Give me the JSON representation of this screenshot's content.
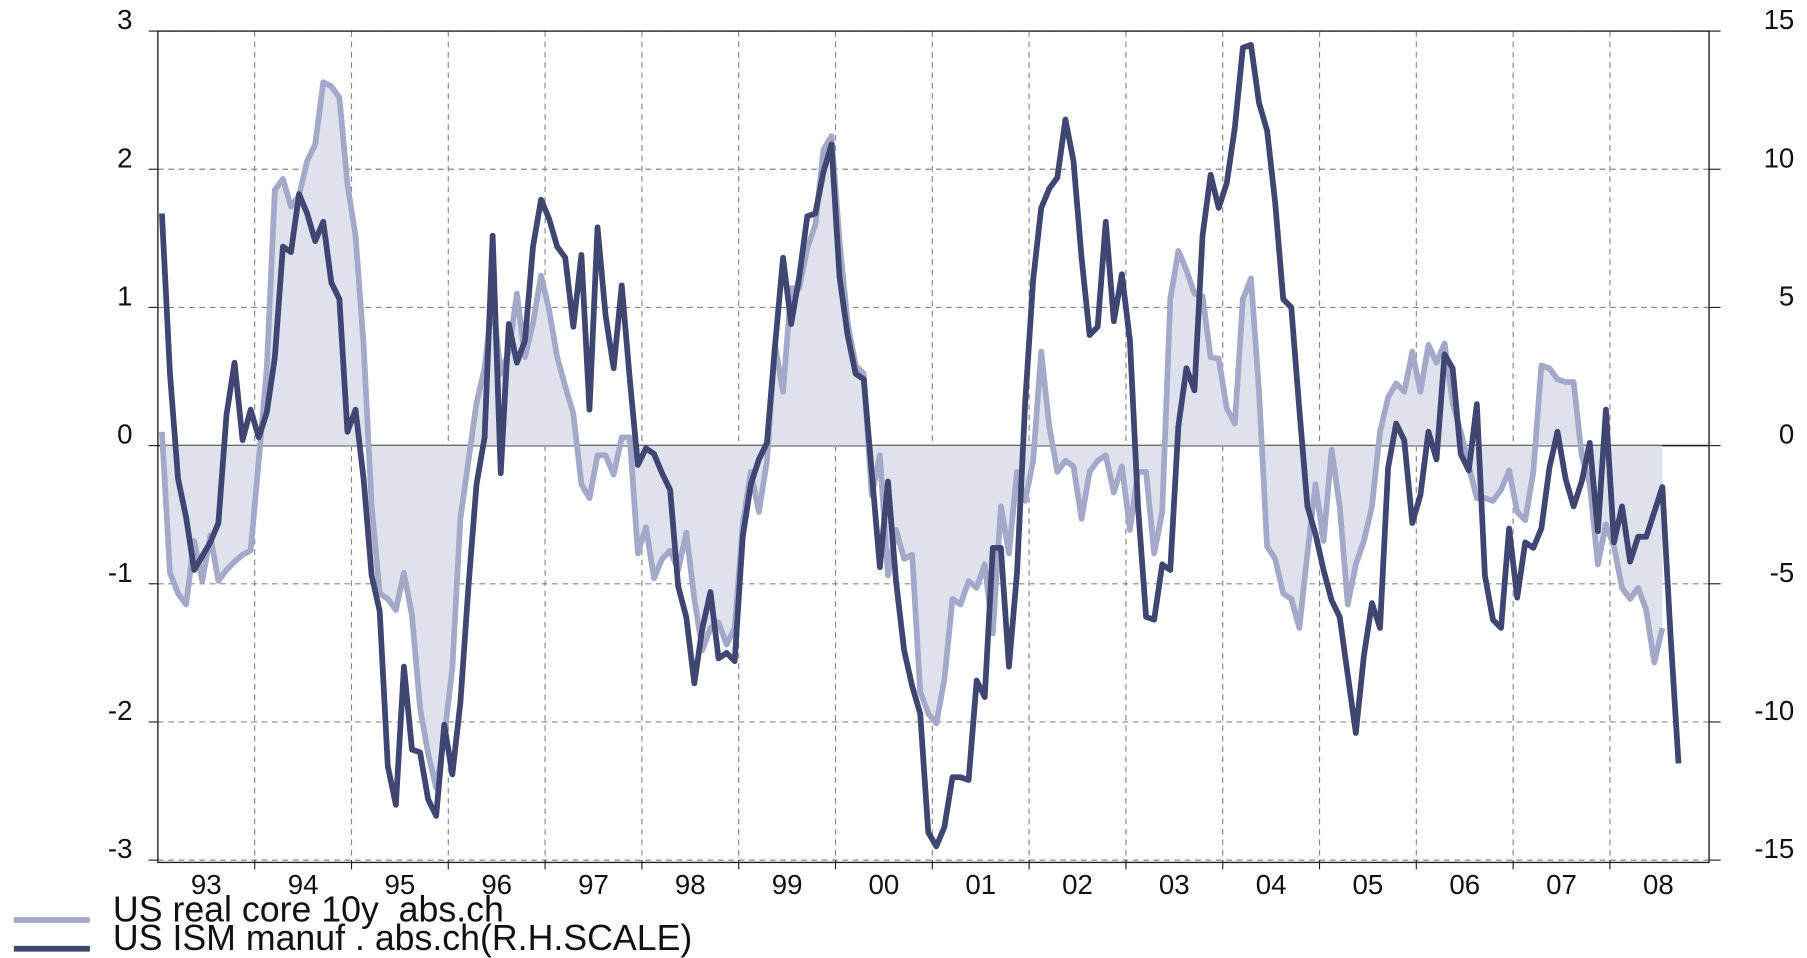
{
  "chart_data": {
    "type": "line",
    "categories": [
      "93",
      "94",
      "95",
      "96",
      "97",
      "98",
      "99",
      "00",
      "01",
      "02",
      "03",
      "04",
      "05",
      "06",
      "07",
      "08"
    ],
    "ylim": [
      -3,
      3
    ],
    "yticks": [
      -3,
      -2,
      -1,
      0,
      1,
      2,
      3
    ],
    "y2lim": [
      -15,
      15
    ],
    "y2ticks": [
      -15,
      -10,
      -5,
      0,
      5,
      10,
      15
    ],
    "grid": true,
    "legend": "bottom-left",
    "series": [
      {
        "name": "US real core 10y  abs.ch",
        "color": "#a5a9c9",
        "fill": "#dfe1ec",
        "values": [
          [
            0.1,
            -0.92,
            -1.07,
            -1.15,
            -0.69,
            -0.98,
            -0.65,
            -0.98,
            -0.9,
            -0.84,
            -0.79,
            -0.76
          ],
          [
            -0.11,
            0.56,
            1.85,
            1.93,
            1.73,
            1.81,
            2.06,
            2.18,
            2.63,
            2.6,
            2.52,
            1.89
          ],
          [
            1.52,
            0.73,
            -0.44,
            -1.07,
            -1.11,
            -1.19,
            -0.92,
            -1.23,
            -1.9,
            -2.23,
            -2.48,
            -2.11
          ],
          [
            -1.61,
            -0.53,
            -0.11,
            0.31,
            0.56,
            1.06,
            0.52,
            0.68,
            1.1,
            0.64,
            0.89,
            1.23
          ],
          [
            0.98,
            0.64,
            0.43,
            0.23,
            -0.28,
            -0.38,
            -0.07,
            -0.07,
            -0.21,
            0.06,
            0.06,
            -0.78
          ],
          [
            -0.59,
            -0.96,
            -0.82,
            -0.76,
            -0.9,
            -0.63,
            -1.11,
            -1.48,
            -1.32,
            -1.28,
            -1.44,
            -1.32
          ],
          [
            -0.57,
            -0.19,
            -0.48,
            -0.11,
            0.73,
            0.39,
            1.14,
            1.14,
            1.43,
            1.6,
            2.14,
            2.24
          ],
          [
            1.48,
            0.89,
            0.58,
            0.52,
            -0.36,
            -0.07,
            -0.94,
            -0.61,
            -0.82,
            -0.79,
            -1.78,
            -1.94
          ],
          [
            -2.01,
            -1.69,
            -1.11,
            -1.15,
            -0.98,
            -1.03,
            -0.86,
            -1.36,
            -0.44,
            -0.78,
            -0.19,
            -0.4
          ],
          [
            -0.11,
            0.68,
            0.14,
            -0.19,
            -0.11,
            -0.15,
            -0.53,
            -0.19,
            -0.11,
            -0.07,
            -0.34,
            -0.15
          ],
          [
            -0.61,
            -0.19,
            -0.19,
            -0.78,
            -0.48,
            1.06,
            1.41,
            1.27,
            1.1,
            1.08,
            0.64,
            0.63
          ],
          [
            0.27,
            0.16,
            1.06,
            1.21,
            0.39,
            -0.73,
            -0.82,
            -1.07,
            -1.11,
            -1.32,
            -0.78,
            -0.28
          ],
          [
            -0.69,
            -0.03,
            -0.44,
            -1.15,
            -0.86,
            -0.69,
            -0.44,
            0.1,
            0.35,
            0.45,
            0.39,
            0.68
          ],
          [
            0.39,
            0.73,
            0.6,
            0.74,
            0.31,
            0.1,
            -0.15,
            -0.38,
            -0.38,
            -0.4,
            -0.32,
            -0.18
          ],
          [
            -0.48,
            -0.54,
            -0.19,
            0.58,
            0.56,
            0.48,
            0.46,
            0.46,
            -0.07,
            -0.28,
            -0.86,
            -0.57
          ],
          [
            -0.73,
            -1.03,
            -1.11,
            -1.03,
            -1.19,
            -1.57,
            -1.32,
            null,
            null,
            null,
            null,
            null
          ]
        ]
      },
      {
        "name": "US ISM manuf . abs.ch(R.H.SCALE)",
        "color": "#3f4672",
        "axis": "y2",
        "values": [
          [
            8.4,
            2.6,
            -1.2,
            -2.6,
            -4.5,
            -4.0,
            -3.5,
            -2.8,
            1.1,
            3.0,
            0.2,
            1.3
          ],
          [
            0.3,
            1.2,
            3.2,
            7.2,
            7.0,
            9.1,
            8.4,
            7.4,
            8.1,
            5.9,
            5.3,
            0.5
          ],
          [
            1.3,
            -1.2,
            -4.7,
            -6.0,
            -11.6,
            -13.0,
            -8.0,
            -11.0,
            -11.1,
            -12.8,
            -13.4,
            -10.1
          ],
          [
            -11.9,
            -9.3,
            -5.1,
            -1.4,
            0.3,
            7.6,
            -1.0,
            4.4,
            3.0,
            3.8,
            7.2,
            8.9
          ],
          [
            8.2,
            7.2,
            6.8,
            4.3,
            6.9,
            1.3,
            7.9,
            4.7,
            2.8,
            5.8,
            2.4,
            -0.7
          ],
          [
            -0.1,
            -0.3,
            -1.0,
            -1.6,
            -5.1,
            -6.2,
            -8.6,
            -6.6,
            -5.3,
            -7.7,
            -7.5,
            -7.8
          ],
          [
            -3.3,
            -1.4,
            -0.5,
            0.1,
            3.6,
            6.8,
            4.4,
            6.1,
            8.3,
            8.4,
            9.9,
            10.9
          ],
          [
            6.1,
            4.0,
            2.6,
            2.4,
            -1.0,
            -4.4,
            -1.3,
            -4.9,
            -7.4,
            -8.7,
            -9.7,
            -14.0
          ],
          [
            -14.5,
            -13.8,
            -12.0,
            -12.0,
            -12.1,
            -8.5,
            -9.1,
            -3.7,
            -3.7,
            -8.0,
            -4.6,
            1.5
          ],
          [
            6.0,
            8.6,
            9.3,
            9.7,
            11.8,
            10.3,
            6.8,
            4.0,
            4.3,
            8.1,
            4.5,
            6.2
          ],
          [
            3.8,
            -2.2,
            -6.2,
            -6.3,
            -4.3,
            -4.5,
            0.7,
            2.8,
            2.0,
            7.6,
            9.8,
            8.6
          ],
          [
            9.5,
            11.5,
            14.4,
            14.5,
            12.4,
            11.4,
            8.8,
            5.3,
            5.0,
            1.3,
            -2.2,
            -3.2
          ],
          [
            -4.5,
            -5.6,
            -6.2,
            -8.3,
            -10.4,
            -7.6,
            -5.7,
            -6.6,
            -0.8,
            0.8,
            0.2,
            -2.8
          ],
          [
            -1.8,
            0.5,
            -0.5,
            3.3,
            2.8,
            -0.3,
            -0.9,
            1.5,
            -4.7,
            -6.3,
            -6.6,
            -3.0
          ],
          [
            -5.5,
            -3.5,
            -3.7,
            -3.0,
            -0.8,
            0.5,
            -1.2,
            -2.2,
            -1.3,
            0.1,
            -3.1,
            1.3
          ],
          [
            -3.5,
            -2.2,
            -4.2,
            -3.3,
            -3.3,
            -2.4,
            -1.5,
            -6.8,
            -11.5,
            null,
            null,
            null
          ]
        ]
      }
    ]
  }
}
